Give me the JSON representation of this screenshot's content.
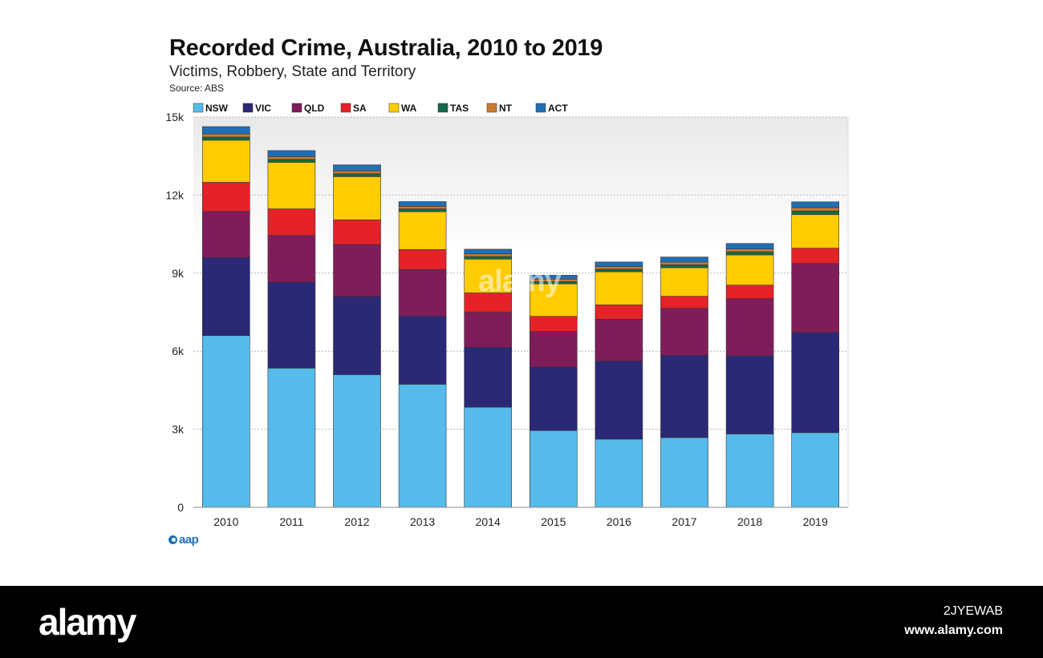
{
  "header": {
    "title": "Recorded Crime, Australia, 2010 to 2019",
    "subtitle": "Victims, Robbery, State and Territory",
    "source": "Source: ABS"
  },
  "chart_data": {
    "type": "bar",
    "stacked": true,
    "title": "Recorded Crime, Australia, 2010 to 2019",
    "subtitle": "Victims, Robbery, State and Territory",
    "categories": [
      "2010",
      "2011",
      "2012",
      "2013",
      "2014",
      "2015",
      "2016",
      "2017",
      "2018",
      "2019"
    ],
    "ylim": [
      0,
      15000
    ],
    "yticks": [
      0,
      3000,
      6000,
      9000,
      12000,
      15000
    ],
    "ytick_labels": [
      "0",
      "3k",
      "6k",
      "9k",
      "12k",
      "15k"
    ],
    "grid": true,
    "legend_position": "top",
    "series": [
      {
        "name": "NSW",
        "color": "#56bbea",
        "values": [
          6600,
          5350,
          5100,
          4730,
          3850,
          2950,
          2620,
          2680,
          2820,
          2870
        ]
      },
      {
        "name": "VIC",
        "color": "#2b2876",
        "values": [
          3000,
          3300,
          3000,
          2610,
          2300,
          2440,
          3000,
          3150,
          3000,
          3850
        ]
      },
      {
        "name": "QLD",
        "color": "#7f1d5b",
        "values": [
          1770,
          1800,
          2000,
          1800,
          1350,
          1370,
          1610,
          1820,
          2200,
          2650
        ]
      },
      {
        "name": "SA",
        "color": "#e42228",
        "values": [
          1120,
          1020,
          950,
          770,
          740,
          580,
          550,
          460,
          520,
          590
        ]
      },
      {
        "name": "WA",
        "color": "#ffcc00",
        "values": [
          1620,
          1790,
          1660,
          1450,
          1300,
          1250,
          1270,
          1100,
          1160,
          1290
        ]
      },
      {
        "name": "TAS",
        "color": "#13694a",
        "values": [
          120,
          110,
          110,
          110,
          100,
          90,
          100,
          110,
          120,
          140
        ]
      },
      {
        "name": "NT",
        "color": "#c97a2e",
        "values": [
          120,
          110,
          110,
          100,
          100,
          90,
          100,
          100,
          110,
          130
        ]
      },
      {
        "name": "ACT",
        "color": "#1f6fb5",
        "values": [
          280,
          230,
          230,
          180,
          180,
          150,
          180,
          200,
          210,
          220
        ]
      }
    ]
  },
  "footer": {
    "logo_text": "aap"
  },
  "watermark": {
    "brand": "alamy",
    "image_id": "2JYEWAB",
    "url": "www.alamy.com"
  }
}
